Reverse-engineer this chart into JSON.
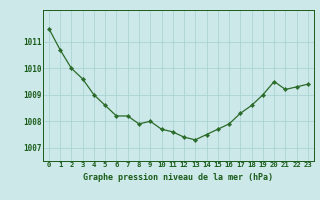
{
  "x": [
    0,
    1,
    2,
    3,
    4,
    5,
    6,
    7,
    8,
    9,
    10,
    11,
    12,
    13,
    14,
    15,
    16,
    17,
    18,
    19,
    20,
    21,
    22,
    23
  ],
  "y": [
    1011.5,
    1010.7,
    1010.0,
    1009.6,
    1009.0,
    1008.6,
    1008.2,
    1008.2,
    1007.9,
    1008.0,
    1007.7,
    1007.6,
    1007.4,
    1007.3,
    1007.5,
    1007.7,
    1007.9,
    1008.3,
    1008.6,
    1009.0,
    1009.5,
    1009.2,
    1009.3,
    1009.4
  ],
  "line_color": "#2a6b2a",
  "marker_color": "#2a6b2a",
  "bg_color": "#cce8e8",
  "grid_color": "#aad4d4",
  "xlabel": "Graphe pression niveau de la mer (hPa)",
  "xlabel_color": "#1a5c1a",
  "tick_color": "#1a5c1a",
  "ylim": [
    1006.5,
    1012.2
  ],
  "yticks": [
    1007,
    1008,
    1009,
    1010,
    1011
  ],
  "xticks": [
    0,
    1,
    2,
    3,
    4,
    5,
    6,
    7,
    8,
    9,
    10,
    11,
    12,
    13,
    14,
    15,
    16,
    17,
    18,
    19,
    20,
    21,
    22,
    23
  ],
  "xtick_labels": [
    "0",
    "1",
    "2",
    "3",
    "4",
    "5",
    "6",
    "7",
    "8",
    "9",
    "10",
    "11",
    "12",
    "13",
    "14",
    "15",
    "16",
    "17",
    "18",
    "19",
    "20",
    "21",
    "22",
    "23"
  ]
}
